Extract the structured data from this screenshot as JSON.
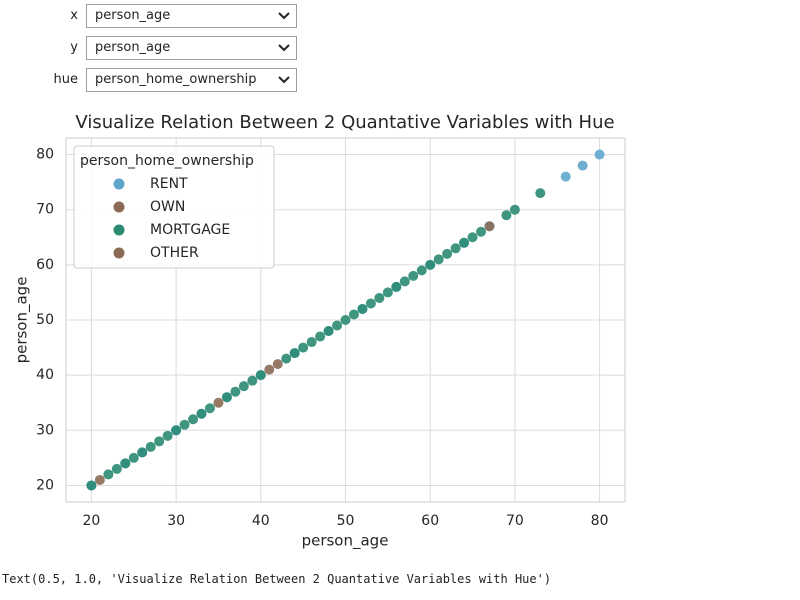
{
  "controls": [
    {
      "label": "x",
      "value": "person_age"
    },
    {
      "label": "y",
      "value": "person_age"
    },
    {
      "label": "hue",
      "value": "person_home_ownership"
    }
  ],
  "chart_data": {
    "type": "scatter",
    "title": "Visualize Relation Between 2 Quantative Variables with Hue",
    "x_label": "person_age",
    "y_label": "person_age",
    "legend_title": "person_home_ownership",
    "legend": "upper left",
    "grid": true,
    "xlim": [
      17,
      83
    ],
    "ylim": [
      17,
      83
    ],
    "xticks": [
      20,
      30,
      40,
      50,
      60,
      70,
      80
    ],
    "yticks": [
      20,
      30,
      40,
      50,
      60,
      70,
      80
    ],
    "series": [
      {
        "name": "RENT",
        "color": "#5fa6cc",
        "x": [
          20,
          24,
          26,
          30,
          33,
          36,
          40,
          44,
          48,
          52,
          56,
          60,
          64,
          67,
          76,
          78,
          80
        ],
        "values": [
          20,
          24,
          26,
          30,
          33,
          36,
          40,
          44,
          48,
          52,
          56,
          60,
          64,
          67,
          76,
          78,
          80
        ]
      },
      {
        "name": "OWN",
        "color": "#8b6b55",
        "x": [
          21,
          35,
          41,
          42
        ],
        "values": [
          21,
          35,
          41,
          42
        ]
      },
      {
        "name": "MORTGAGE",
        "color": "#2a8a72",
        "x": [
          20,
          22,
          23,
          24,
          25,
          26,
          27,
          28,
          29,
          30,
          31,
          32,
          33,
          34,
          36,
          37,
          38,
          39,
          40,
          43,
          44,
          45,
          46,
          47,
          48,
          49,
          50,
          51,
          52,
          53,
          54,
          55,
          56,
          57,
          58,
          59,
          60,
          61,
          62,
          63,
          64,
          65,
          66,
          69,
          70,
          73
        ],
        "values": [
          20,
          22,
          23,
          24,
          25,
          26,
          27,
          28,
          29,
          30,
          31,
          32,
          33,
          34,
          36,
          37,
          38,
          39,
          40,
          43,
          44,
          45,
          46,
          47,
          48,
          49,
          50,
          51,
          52,
          53,
          54,
          55,
          56,
          57,
          58,
          59,
          60,
          61,
          62,
          63,
          64,
          65,
          66,
          69,
          70,
          73
        ]
      },
      {
        "name": "OTHER",
        "color": "#8b6b55",
        "x": [
          67
        ],
        "values": [
          67
        ]
      }
    ]
  },
  "output": "Text(0.5, 1.0, 'Visualize Relation Between 2 Quantative Variables with Hue')"
}
